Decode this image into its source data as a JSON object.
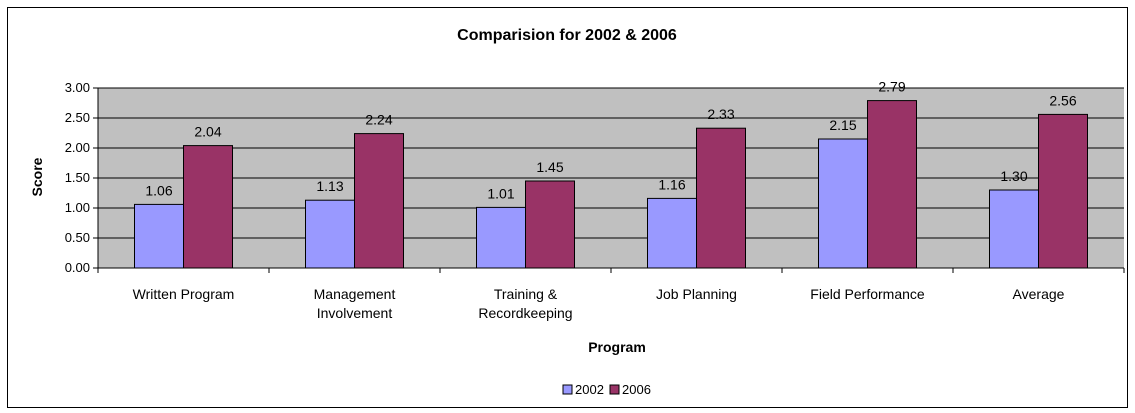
{
  "chart_data": {
    "type": "bar",
    "title": "Comparision for 2002 & 2006",
    "xlabel": "Program",
    "ylabel": "Score",
    "ylim": [
      0,
      3
    ],
    "yticks": [
      "0.00",
      "0.50",
      "1.00",
      "1.50",
      "2.00",
      "2.50",
      "3.00"
    ],
    "categories": [
      [
        "Written Program"
      ],
      [
        "Management",
        "Involvement"
      ],
      [
        "Training &",
        "Recordkeeping"
      ],
      [
        "Job Planning"
      ],
      [
        "Field Performance"
      ],
      [
        "Average"
      ]
    ],
    "series": [
      {
        "name": "2002",
        "color": "#9999ff",
        "values": [
          1.06,
          1.13,
          1.01,
          1.16,
          2.15,
          1.3
        ],
        "labels": [
          "1.06",
          "1.13",
          "1.01",
          "1.16",
          "2.15",
          "1.30"
        ]
      },
      {
        "name": "2006",
        "color": "#993366",
        "values": [
          2.04,
          2.24,
          1.45,
          2.33,
          2.79,
          2.56
        ],
        "labels": [
          "2.04",
          "2.24",
          "1.45",
          "2.33",
          "2.79",
          "2.56"
        ]
      }
    ],
    "grid": true,
    "plot_background": "#c0c0c0",
    "legend_position": "bottom"
  }
}
